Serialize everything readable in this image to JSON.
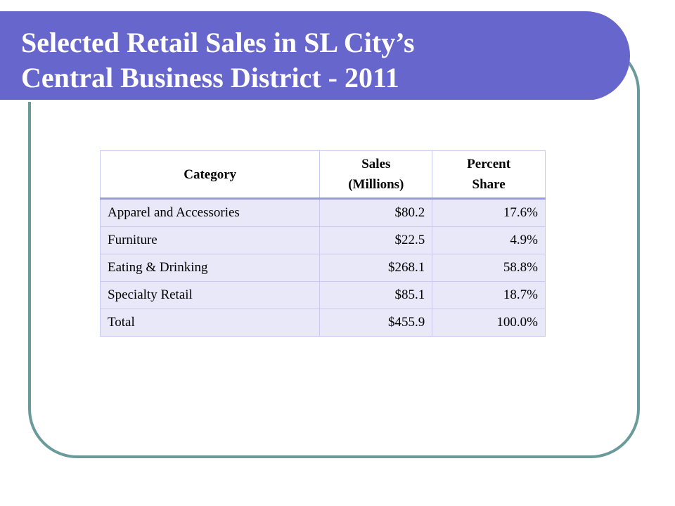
{
  "slide": {
    "title_line1": "Selected Retail Sales in SL City’s",
    "title_line2": "Central Business District - 2011"
  },
  "table": {
    "headers": {
      "category": "Category",
      "sales_line1": "Sales",
      "sales_line2": "(Millions)",
      "share_line1": "Percent",
      "share_line2": "Share"
    },
    "rows": [
      {
        "category": "Apparel and Accessories",
        "sales": "$80.2",
        "share": "17.6%"
      },
      {
        "category": "Furniture",
        "sales": "$22.5",
        "share": "4.9%"
      },
      {
        "category": "Eating & Drinking",
        "sales": "$268.1",
        "share": "58.8%"
      },
      {
        "category": "Specialty Retail",
        "sales": "$85.1",
        "share": "18.7%"
      },
      {
        "category": "Total",
        "sales": "$455.9",
        "share": "100.0%"
      }
    ]
  },
  "colors": {
    "title_band": "#6666cc",
    "frame_border": "#6b9a9a",
    "row_fill": "#e8e8f8",
    "header_rule": "#9a9ae0"
  }
}
